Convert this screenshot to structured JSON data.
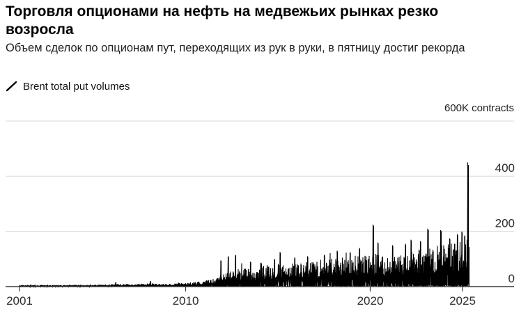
{
  "header": {
    "title": "Торговля опционами на нефть на медвежьих рынках резко возросла",
    "subtitle": "Объем сделок по опционам пут, переходящих из рук в руки, в пятницу достиг рекорда"
  },
  "legend": {
    "items": [
      {
        "label": "Brent total put volumes",
        "marker": "slash-line",
        "color": "#000000"
      }
    ]
  },
  "axis": {
    "top_label": "600K contracts",
    "y": [
      "400",
      "200",
      "0"
    ],
    "x": [
      "2001",
      "2010",
      "2020",
      "2025"
    ]
  },
  "colors": {
    "series": "#000000",
    "gridline": "#d8d8d8",
    "axis_line": "#3a3a3a",
    "tick_label": "#2b2b2b"
  },
  "chart_data": {
    "type": "area",
    "title": "Торговля опционами на нефть на медвежьих рынках резко возросла",
    "subtitle": "Объем сделок по опционам пут, переходящих из рук в руки, в пятницу достиг рекорда",
    "series_name": "Brent total put volumes",
    "unit": "K contracts",
    "top_axis_label": "600K contracts",
    "x_range": [
      2001,
      2025.35
    ],
    "y_range": [
      0,
      600
    ],
    "yticks": [
      0,
      200,
      400,
      600
    ],
    "xticks": [
      2001,
      2010,
      2020,
      2025
    ],
    "grid": "horizontal",
    "legend_position": "top-left",
    "series_color": "#000000",
    "envelope_by_year": [
      {
        "year": 2001,
        "typical_max": 4
      },
      {
        "year": 2002,
        "typical_max": 4
      },
      {
        "year": 2003,
        "typical_max": 4
      },
      {
        "year": 2004,
        "typical_max": 5
      },
      {
        "year": 2005,
        "typical_max": 5
      },
      {
        "year": 2006,
        "typical_max": 7
      },
      {
        "year": 2007,
        "typical_max": 7
      },
      {
        "year": 2008,
        "typical_max": 9
      },
      {
        "year": 2009,
        "typical_max": 8
      },
      {
        "year": 2010,
        "typical_max": 11
      },
      {
        "year": 2010.8,
        "typical_max": 15
      },
      {
        "year": 2011.5,
        "typical_max": 22
      },
      {
        "year": 2012,
        "typical_max": 38
      },
      {
        "year": 2012.5,
        "typical_max": 46
      },
      {
        "year": 2013,
        "typical_max": 52
      },
      {
        "year": 2014,
        "typical_max": 56
      },
      {
        "year": 2015,
        "typical_max": 72
      },
      {
        "year": 2016,
        "typical_max": 66
      },
      {
        "year": 2017,
        "typical_max": 74
      },
      {
        "year": 2018,
        "typical_max": 84
      },
      {
        "year": 2019,
        "typical_max": 82
      },
      {
        "year": 2020,
        "typical_max": 96
      },
      {
        "year": 2021,
        "typical_max": 86
      },
      {
        "year": 2022,
        "typical_max": 96
      },
      {
        "year": 2023,
        "typical_max": 112
      },
      {
        "year": 2024,
        "typical_max": 120
      },
      {
        "year": 2025,
        "typical_max": 130
      },
      {
        "year": 2025.35,
        "typical_max": 135
      }
    ],
    "notable_spikes": [
      {
        "year": 2006.2,
        "value": 16
      },
      {
        "year": 2008.1,
        "value": 20
      },
      {
        "year": 2009.6,
        "value": 14
      },
      {
        "year": 2011.9,
        "value": 95
      },
      {
        "year": 2012.3,
        "value": 110
      },
      {
        "year": 2012.7,
        "value": 115
      },
      {
        "year": 2013.5,
        "value": 90
      },
      {
        "year": 2014.8,
        "value": 100
      },
      {
        "year": 2015.1,
        "value": 125
      },
      {
        "year": 2015.9,
        "value": 105
      },
      {
        "year": 2016.6,
        "value": 110
      },
      {
        "year": 2017.5,
        "value": 115
      },
      {
        "year": 2018.2,
        "value": 130
      },
      {
        "year": 2018.9,
        "value": 125
      },
      {
        "year": 2019.4,
        "value": 140
      },
      {
        "year": 2020.15,
        "value": 225
      },
      {
        "year": 2020.4,
        "value": 160
      },
      {
        "year": 2021.2,
        "value": 150
      },
      {
        "year": 2021.9,
        "value": 155
      },
      {
        "year": 2022.2,
        "value": 170
      },
      {
        "year": 2022.7,
        "value": 165
      },
      {
        "year": 2023.1,
        "value": 210
      },
      {
        "year": 2023.8,
        "value": 205
      },
      {
        "year": 2024.3,
        "value": 175
      },
      {
        "year": 2024.7,
        "value": 190
      },
      {
        "year": 2024.95,
        "value": 200
      },
      {
        "year": 2025.1,
        "value": 185
      },
      {
        "year": 2025.28,
        "value": 450,
        "note": "record high"
      }
    ]
  }
}
